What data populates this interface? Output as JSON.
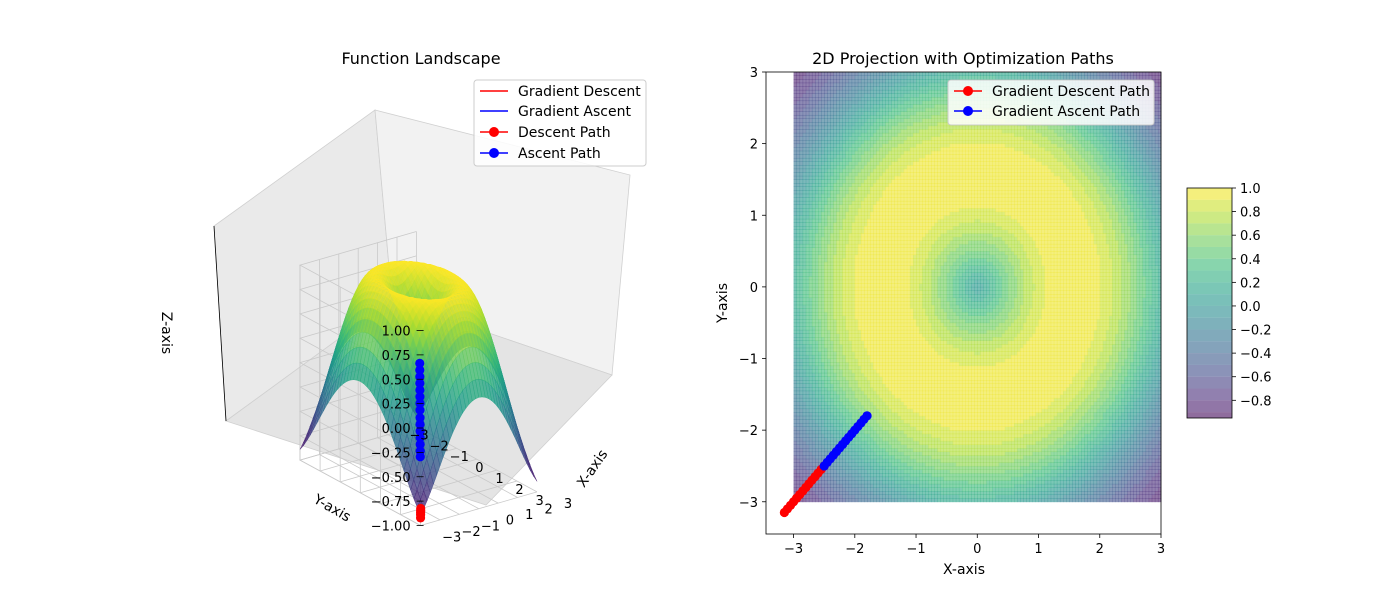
{
  "chart_data": [
    {
      "type": "surface3d",
      "title": "Function Landscape",
      "xlabel": "X-axis",
      "ylabel": "Y-axis",
      "zlabel": "Z-axis",
      "xlim": [
        -3,
        3
      ],
      "ylim": [
        -3,
        3
      ],
      "zlim": [
        -1,
        1
      ],
      "x_ticks": [
        "−3",
        "−2",
        "−1",
        "0",
        "1",
        "2",
        "3"
      ],
      "y_ticks": [
        "−3",
        "−2",
        "−1",
        "0",
        "1",
        "2",
        "3"
      ],
      "z_ticks": [
        "−1.00",
        "−0.75",
        "−0.50",
        "−0.25",
        "0.00",
        "0.25",
        "0.50",
        "0.75",
        "1.00"
      ],
      "function": "sin(sqrt(x^2+y^2))",
      "colormap": "viridis",
      "grid": true,
      "legend_position": "top-right",
      "legend": [
        "Gradient Descent",
        "Gradient Ascent",
        "Descent Path",
        "Ascent Path"
      ],
      "series": [
        {
          "name": "Descent Path",
          "color": "#ff0000",
          "points": [
            [
              -2.95,
              -2.95,
              -0.93
            ],
            [
              -3.0,
              -3.0,
              -0.89
            ],
            [
              -3.05,
              -3.05,
              -0.86
            ],
            [
              -3.1,
              -3.1,
              -0.83
            ],
            [
              -3.15,
              -3.15,
              -0.8
            ]
          ]
        },
        {
          "name": "Ascent Path",
          "color": "#0000ff",
          "points": [
            [
              -2.5,
              -2.5,
              -0.38
            ],
            [
              -2.45,
              -2.45,
              -0.33
            ],
            [
              -2.4,
              -2.4,
              -0.27
            ],
            [
              -2.35,
              -2.35,
              -0.21
            ],
            [
              -2.3,
              -2.3,
              -0.15
            ],
            [
              -2.25,
              -2.25,
              -0.09
            ],
            [
              -2.2,
              -2.2,
              -0.03
            ],
            [
              -2.15,
              -2.15,
              0.04
            ],
            [
              -2.1,
              -2.1,
              0.1
            ],
            [
              -2.05,
              -2.05,
              0.16
            ],
            [
              -2.0,
              -2.0,
              0.22
            ],
            [
              -1.95,
              -1.95,
              0.28
            ],
            [
              -1.9,
              -1.9,
              0.34
            ],
            [
              -1.85,
              -1.85,
              0.4
            ],
            [
              -1.8,
              -1.8,
              0.46
            ]
          ]
        }
      ]
    },
    {
      "type": "contour",
      "title": "2D Projection with Optimization Paths",
      "xlabel": "X-axis",
      "ylabel": "Y-axis",
      "xlim": [
        -3.45,
        3
      ],
      "ylim": [
        -3.45,
        3
      ],
      "x_ticks": [
        -3,
        -2,
        -1,
        0,
        1,
        2,
        3
      ],
      "y_ticks": [
        -3,
        -2,
        -1,
        0,
        1,
        2,
        3
      ],
      "x_tick_labels": [
        "−3",
        "−2",
        "−1",
        "0",
        "1",
        "2",
        "3"
      ],
      "y_tick_labels": [
        "−3",
        "−2",
        "−1",
        "0",
        "1",
        "2",
        "3"
      ],
      "function": "sin(sqrt(x^2+y^2))",
      "data_extent": [
        -3,
        3
      ],
      "colormap": "viridis",
      "legend_position": "top-right",
      "legend": [
        "Gradient Descent Path",
        "Gradient Ascent Path"
      ],
      "colorbar": {
        "min": -0.95,
        "max": 1.0,
        "ticks": [
          1.0,
          0.8,
          0.6,
          0.4,
          0.2,
          0.0,
          -0.2,
          -0.4,
          -0.6,
          -0.8
        ],
        "tick_labels": [
          "1.0",
          "0.8",
          "0.6",
          "0.4",
          "0.2",
          "0.0",
          "−0.2",
          "−0.4",
          "−0.6",
          "−0.8"
        ]
      },
      "series": [
        {
          "name": "Gradient Descent Path",
          "color": "#ff0000",
          "x": [
            -3.15,
            -3.1,
            -3.05,
            -3.0,
            -2.95,
            -2.9,
            -2.85,
            -2.8,
            -2.75,
            -2.7,
            -2.65,
            -2.6,
            -2.55,
            -2.5
          ],
          "y": [
            -3.15,
            -3.1,
            -3.05,
            -3.0,
            -2.95,
            -2.9,
            -2.85,
            -2.8,
            -2.75,
            -2.7,
            -2.65,
            -2.6,
            -2.55,
            -2.5
          ]
        },
        {
          "name": "Gradient Ascent Path",
          "color": "#0000ff",
          "x": [
            -2.5,
            -2.45,
            -2.4,
            -2.35,
            -2.3,
            -2.25,
            -2.2,
            -2.15,
            -2.1,
            -2.05,
            -2.0,
            -1.95,
            -1.9,
            -1.85,
            -1.8
          ],
          "y": [
            -2.5,
            -2.45,
            -2.4,
            -2.35,
            -2.3,
            -2.25,
            -2.2,
            -2.15,
            -2.1,
            -2.05,
            -2.0,
            -1.95,
            -1.9,
            -1.85,
            -1.8
          ]
        }
      ]
    }
  ]
}
